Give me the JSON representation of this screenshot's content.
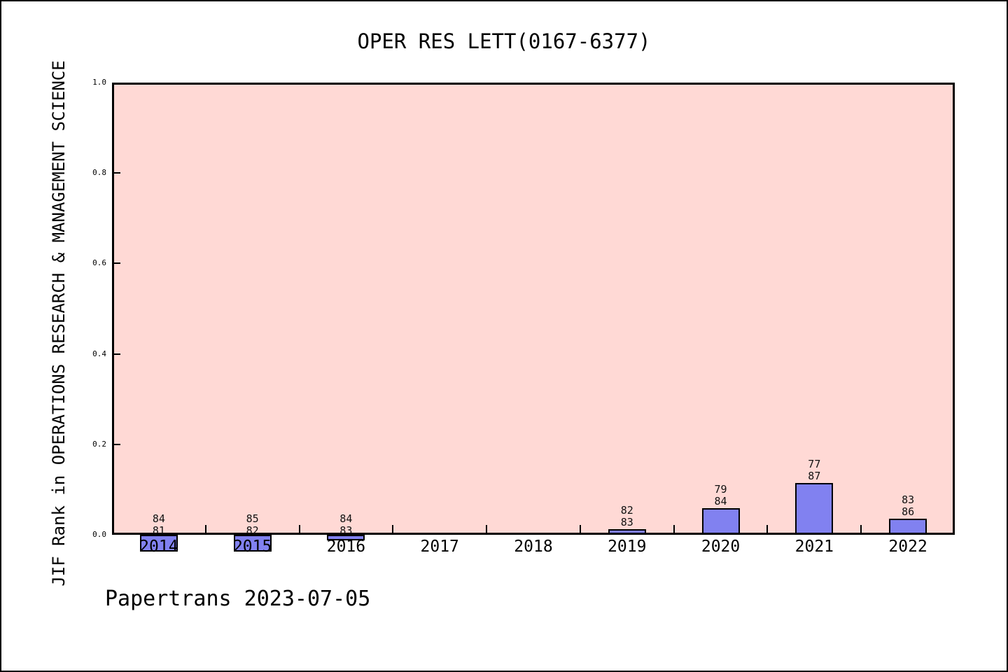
{
  "title": "OPER RES LETT(0167-6377)",
  "footer": "Papertrans 2023-07-05",
  "chart_data": {
    "type": "bar",
    "title": "OPER RES LETT(0167-6377)",
    "xlabel": "",
    "ylabel": "JIF Rank in OPERATIONS RESEARCH & MANAGEMENT SCIENCE",
    "ylim": [
      0.0,
      1.0
    ],
    "grid": false,
    "legend": "none",
    "yticks": [
      {
        "label": "1.0",
        "value": 1.0
      },
      {
        "label": "0.8",
        "value": 0.8
      },
      {
        "label": "0.6",
        "value": 0.6
      },
      {
        "label": "0.4",
        "value": 0.4
      },
      {
        "label": "0.2",
        "value": 0.2
      },
      {
        "label": "0.0",
        "value": 0.0
      }
    ],
    "categories": [
      "2014",
      "2015",
      "2016",
      "2017",
      "2018",
      "2019",
      "2020",
      "2021",
      "2022"
    ],
    "bars": [
      {
        "year": "2014",
        "rank": 84,
        "total": 81,
        "value": -0.037
      },
      {
        "year": "2015",
        "rank": 85,
        "total": 82,
        "value": -0.0366
      },
      {
        "year": "2016",
        "rank": 84,
        "total": 83,
        "value": -0.012
      },
      {
        "year": "2017",
        "rank": null,
        "total": null,
        "value": null
      },
      {
        "year": "2018",
        "rank": null,
        "total": null,
        "value": null
      },
      {
        "year": "2019",
        "rank": 82,
        "total": 83,
        "value": 0.012
      },
      {
        "year": "2020",
        "rank": 79,
        "total": 84,
        "value": 0.0595
      },
      {
        "year": "2021",
        "rank": 77,
        "total": 87,
        "value": 0.1149
      },
      {
        "year": "2022",
        "rank": 83,
        "total": 86,
        "value": 0.0349
      }
    ],
    "colors": {
      "plot_background": "#ffd9d5",
      "bar_fill": "#8181f0",
      "bar_border": "#000000",
      "axis": "#000000",
      "text": "#000000"
    }
  }
}
